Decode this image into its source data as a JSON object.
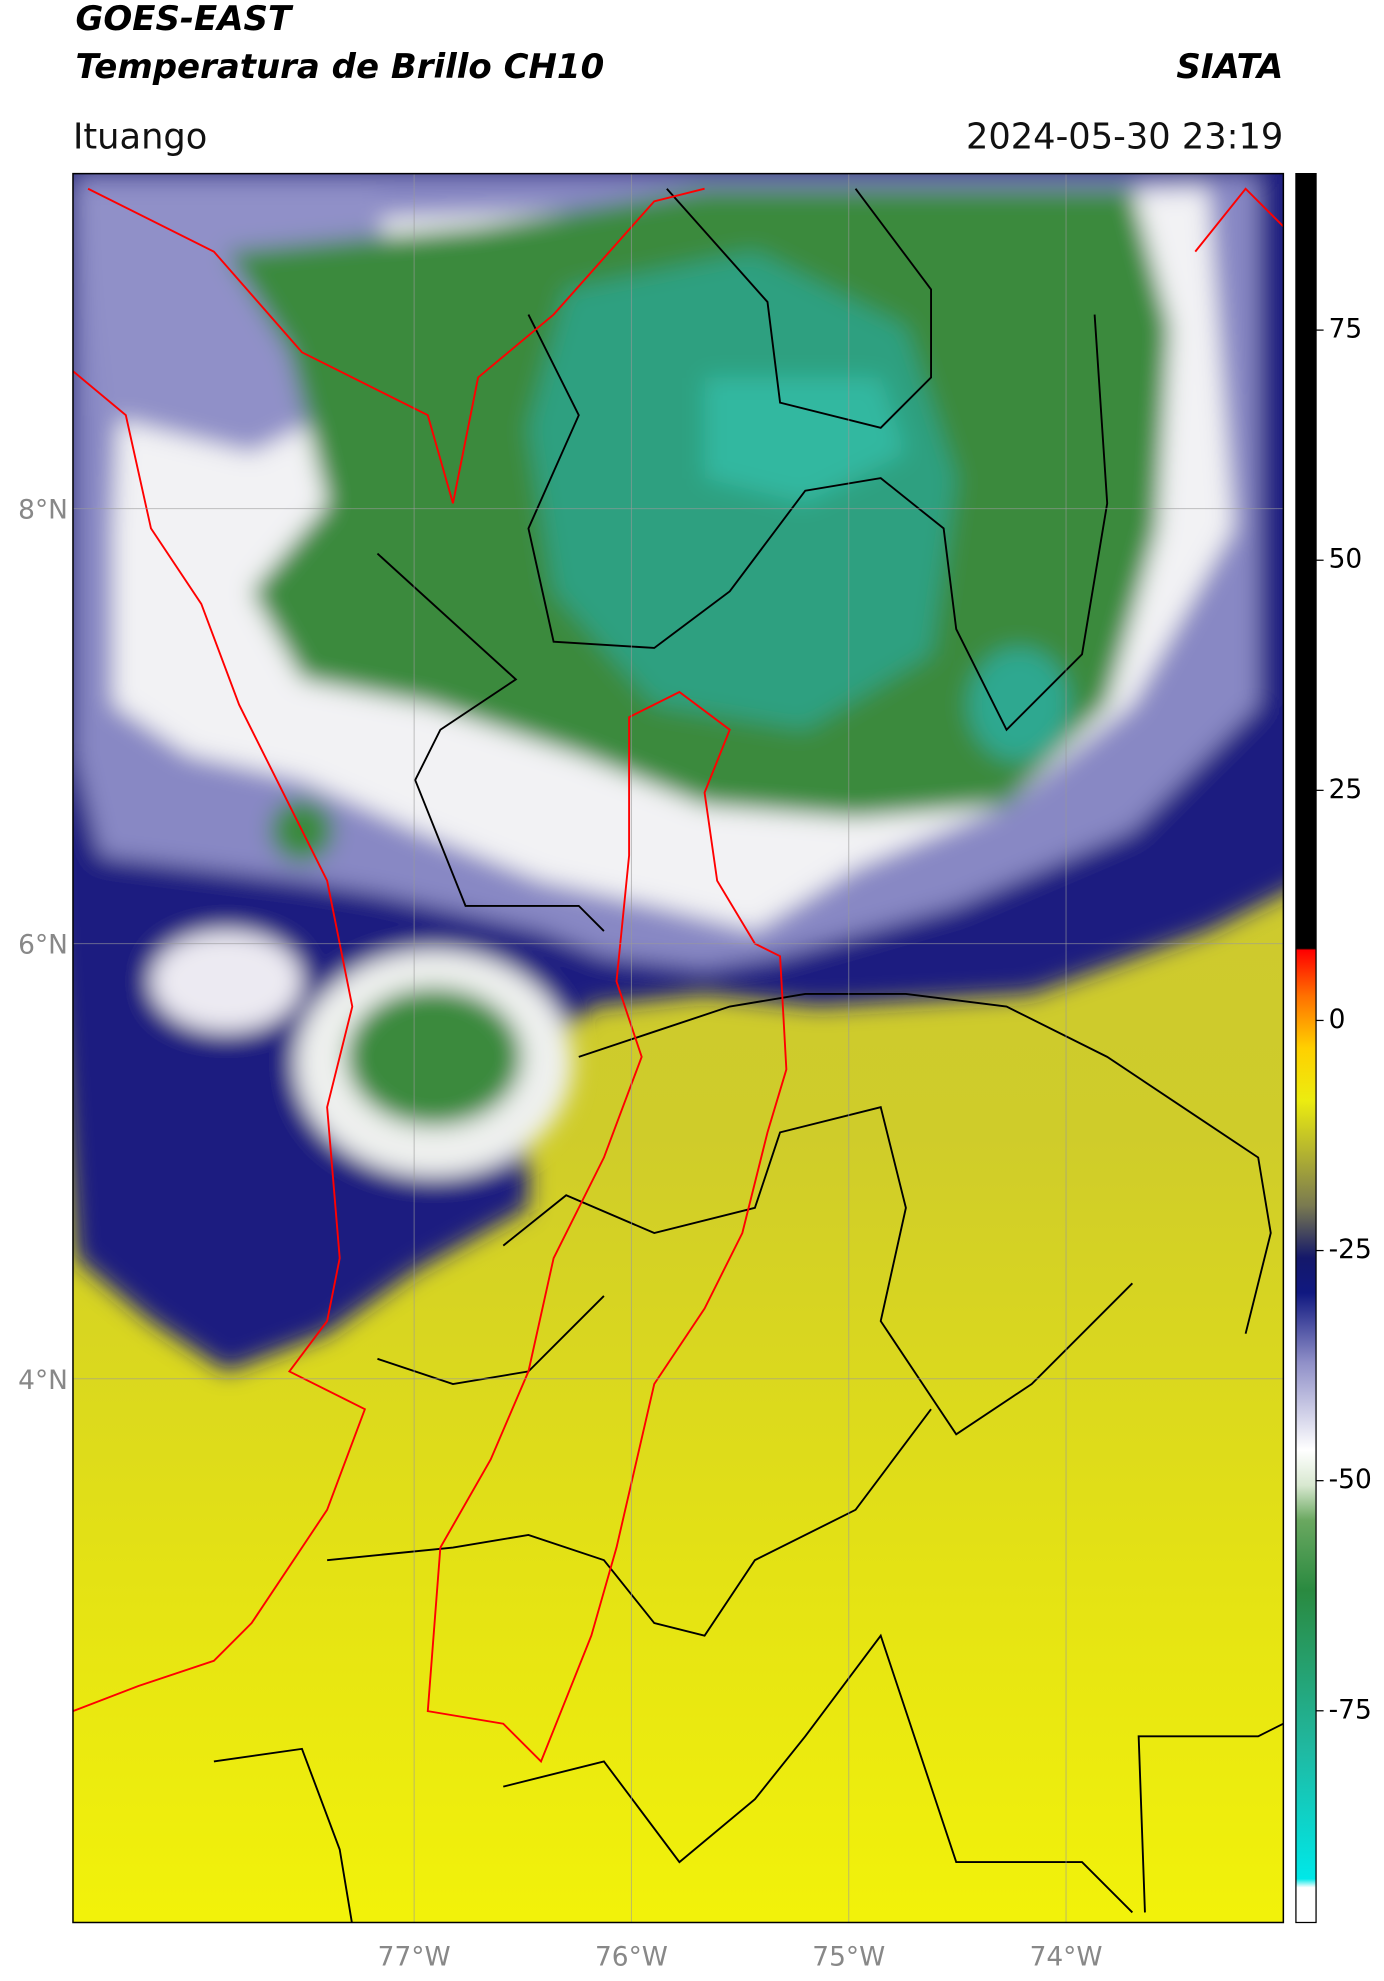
{
  "header": {
    "satellite": "GOES-EAST",
    "product": "Temperatura de Brillo CH10",
    "agency": "SIATA",
    "location": "Ituango",
    "datetime": "2024-05-30 23:19"
  },
  "map": {
    "lon_range": [
      -78.57,
      -73.0
    ],
    "lat_range": [
      1.5,
      9.54
    ],
    "lon_ticks": [
      {
        "value": -77,
        "label": "77°W"
      },
      {
        "value": -76,
        "label": "76°W"
      },
      {
        "value": -75,
        "label": "75°W"
      },
      {
        "value": -74,
        "label": "74°W"
      }
    ],
    "lat_ticks": [
      {
        "value": 8,
        "label": "8°N"
      },
      {
        "value": 6,
        "label": "6°N"
      },
      {
        "value": 4,
        "label": "4°N"
      }
    ]
  },
  "colorbar": {
    "range": [
      -98,
      92
    ],
    "ticks": [
      75,
      50,
      25,
      0,
      -25,
      -50,
      -75
    ]
  }
}
